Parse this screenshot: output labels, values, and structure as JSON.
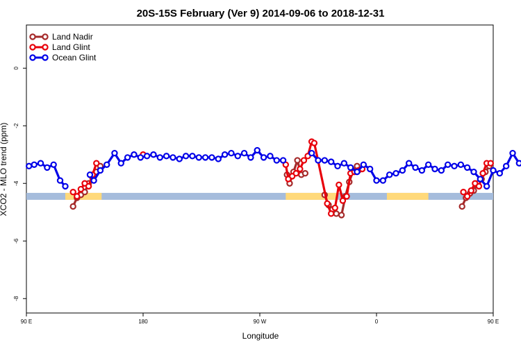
{
  "chart_data": {
    "type": "line",
    "title": "20S-15S February (Ver 9)   2014-09-06 to 2018-12-31",
    "xlabel": "Longitude",
    "ylabel": "XCO2 - MLO trend (ppm)",
    "xlim": [
      90,
      450
    ],
    "ylim": [
      -8.5,
      1.5
    ],
    "x_ticks": [
      {
        "value": 90,
        "label": "90 E"
      },
      {
        "value": 180,
        "label": "180"
      },
      {
        "value": 270,
        "label": "90 W"
      },
      {
        "value": 360,
        "label": "0"
      },
      {
        "value": 450,
        "label": "90 E"
      },
      {
        "value": 540,
        "label": "180"
      }
    ],
    "y_ticks": [
      {
        "value": 0,
        "label": "0"
      },
      {
        "value": -2,
        "label": "-2"
      },
      {
        "value": -4,
        "label": "-4"
      },
      {
        "value": -6,
        "label": "-6"
      },
      {
        "value": -8,
        "label": "-8"
      }
    ],
    "grid": false,
    "legend_position": "top-left",
    "surface_band": {
      "y": -4.45,
      "ocean_color": "#a5bcdc",
      "land_color": "#ffd97a",
      "land_ranges": [
        [
          120,
          148
        ],
        [
          290,
          330
        ],
        [
          368,
          400
        ],
        [
          480,
          508
        ]
      ]
    },
    "series": [
      {
        "name": "Land Nadir",
        "color": "#a52a2a",
        "x": [
          126,
          129,
          132,
          135,
          138,
          141,
          144,
          147,
          291,
          293,
          296,
          299,
          302,
          305,
          320,
          323,
          326,
          329,
          333,
          336,
          339,
          342,
          345,
          426,
          429,
          432,
          435,
          438,
          441,
          444,
          447
        ],
        "y": [
          -4.8,
          -4.5,
          -4.4,
          -4.3,
          -4.0,
          -3.8,
          -3.6,
          -3.4,
          -3.7,
          -4.0,
          -3.6,
          -3.2,
          -3.7,
          -3.65,
          -4.4,
          -4.75,
          -4.9,
          -5.05,
          -5.1,
          -4.45,
          -3.95,
          -3.55,
          -3.4,
          -4.8,
          -4.5,
          -4.35,
          -4.25,
          -4.0,
          -3.85,
          -3.6,
          -3.4
        ],
        "segments": [
          8,
          6,
          9,
          8
        ]
      },
      {
        "name": "Land Glint",
        "color": "#e8000a",
        "x": [
          126,
          129,
          132,
          135,
          138,
          141,
          144,
          180,
          290,
          292,
          295,
          298,
          301,
          304,
          307,
          310,
          312,
          322,
          325,
          328,
          331,
          334,
          337,
          340,
          343,
          346,
          349,
          427,
          430,
          433,
          436,
          439,
          442,
          445,
          448
        ],
        "y": [
          -4.3,
          -4.45,
          -4.2,
          -4.0,
          -4.1,
          -3.7,
          -3.3,
          -3.0,
          -3.35,
          -3.85,
          -3.75,
          -3.65,
          -3.5,
          -3.2,
          -3.05,
          -2.55,
          -2.6,
          -4.7,
          -5.05,
          -4.85,
          -4.05,
          -4.6,
          -4.45,
          -3.65,
          -3.6,
          -3.55,
          -3.5,
          -4.3,
          -4.45,
          -4.25,
          -4.0,
          -4.1,
          -3.65,
          -3.3,
          -3.3
        ],
        "segments": [
          7,
          1,
          11,
          8,
          8
        ]
      },
      {
        "name": "Ocean Glint",
        "color": "#0000e8",
        "x": [
          92,
          96,
          101,
          106,
          111,
          116,
          120,
          139,
          142,
          147,
          152,
          158,
          163,
          168,
          173,
          178,
          183,
          188,
          193,
          198,
          203,
          208,
          213,
          218,
          223,
          228,
          233,
          238,
          243,
          248,
          253,
          258,
          263,
          268,
          273,
          278,
          283,
          288,
          310,
          315,
          320,
          325,
          330,
          335,
          340,
          345,
          350,
          355,
          360,
          365,
          370,
          375,
          380,
          385,
          390,
          395,
          400,
          405,
          410,
          415,
          420,
          425,
          430,
          435,
          440,
          445,
          450,
          455,
          460,
          465,
          470,
          475
        ],
        "y": [
          -3.4,
          -3.35,
          -3.3,
          -3.45,
          -3.35,
          -3.9,
          -4.1,
          -3.7,
          -3.9,
          -3.55,
          -3.35,
          -2.95,
          -3.3,
          -3.1,
          -3.0,
          -3.1,
          -3.05,
          -3.0,
          -3.1,
          -3.05,
          -3.1,
          -3.15,
          -3.05,
          -3.05,
          -3.1,
          -3.1,
          -3.1,
          -3.15,
          -3.0,
          -2.95,
          -3.05,
          -2.95,
          -3.1,
          -2.85,
          -3.1,
          -3.05,
          -3.2,
          -3.2,
          -2.95,
          -3.2,
          -3.2,
          -3.25,
          -3.4,
          -3.3,
          -3.45,
          -3.6,
          -3.35,
          -3.5,
          -3.9,
          -3.9,
          -3.7,
          -3.65,
          -3.55,
          -3.3,
          -3.45,
          -3.55,
          -3.35,
          -3.5,
          -3.55,
          -3.35,
          -3.4,
          -3.35,
          -3.45,
          -3.6,
          -3.85,
          -4.1,
          -3.55,
          -3.65,
          -3.4,
          -2.95,
          -3.3,
          -3.1
        ],
        "segments": [
          7,
          31,
          34
        ]
      }
    ]
  }
}
